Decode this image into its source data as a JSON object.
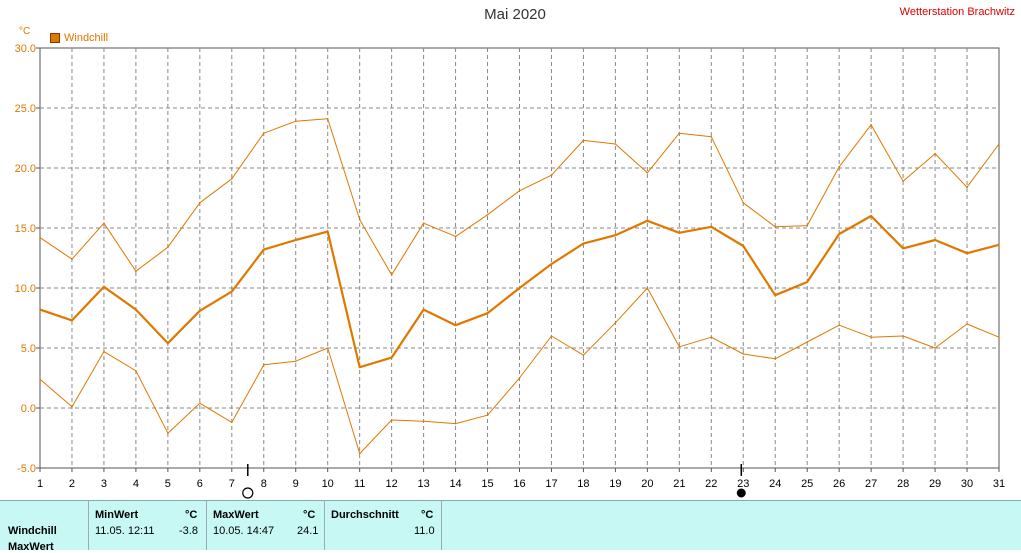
{
  "chart_data": {
    "type": "line",
    "title": "Mai 2020",
    "station": "Wetterstation Brachwitz",
    "unit": "°C",
    "legend": [
      "Windchill"
    ],
    "ylim": [
      -5,
      30
    ],
    "yticks": [
      "30.0",
      "25.0",
      "20.0",
      "15.0",
      "10.0",
      "5.0",
      "0.0",
      "-5.0"
    ],
    "x": [
      1,
      2,
      3,
      4,
      5,
      6,
      7,
      8,
      9,
      10,
      11,
      12,
      13,
      14,
      15,
      16,
      17,
      18,
      19,
      20,
      21,
      22,
      23,
      24,
      25,
      26,
      27,
      28,
      29,
      30,
      31
    ],
    "grid": true,
    "series": [
      {
        "name": "Windchill",
        "values": [
          8.2,
          7.3,
          10.1,
          8.2,
          5.4,
          8.1,
          9.7,
          13.2,
          14.0,
          14.7,
          3.4,
          4.2,
          8.2,
          6.9,
          7.9,
          10.0,
          12.0,
          13.7,
          14.4,
          15.6,
          14.6,
          15.1,
          13.5,
          9.4,
          10.5,
          14.5,
          16.0,
          13.3,
          14.0,
          12.9,
          13.6
        ]
      },
      {
        "values": [
          14.2,
          12.4,
          15.4,
          11.4,
          13.4,
          17.1,
          19.1,
          22.9,
          23.9,
          24.1,
          15.7,
          11.1,
          15.4,
          14.3,
          16.1,
          18.1,
          19.4,
          22.3,
          22.0,
          19.6,
          22.9,
          22.6,
          17.1,
          15.1,
          15.2,
          20.1,
          23.6,
          18.9,
          21.2,
          18.4,
          22.0
        ]
      },
      {
        "values": [
          2.4,
          0.1,
          4.7,
          3.1,
          -2.1,
          0.4,
          -1.2,
          3.6,
          3.9,
          5.0,
          -3.8,
          -1.0,
          -1.1,
          -1.3,
          -0.6,
          2.5,
          6.0,
          4.4,
          7.1,
          10.0,
          5.1,
          5.9,
          4.5,
          4.1,
          5.5,
          6.9,
          5.9,
          6.0,
          5.0,
          7.0,
          5.9
        ]
      }
    ],
    "moon": {
      "full_day": "7",
      "new_day": "23"
    }
  },
  "panel": {
    "row1": "Windchill",
    "row2": "MaxWert",
    "min_header": "MinWert",
    "max_header": "MaxWert",
    "avg_header": "Durchschnitt",
    "unit": "°C",
    "min_time": "11.05.  12:11",
    "min_value": "-3.8",
    "max_time": "10.05.  14:47",
    "max_value": "24.1",
    "avg_value": "11.0"
  }
}
